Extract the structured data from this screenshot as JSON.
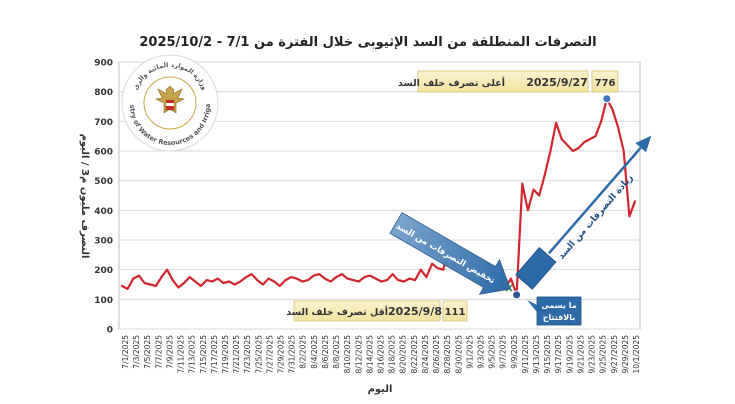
{
  "chart_data": {
    "type": "line",
    "title": "التصرفات المنطلقة من السد الإثيوبى خلال الفترة من 7/1 - 2025/10/2",
    "xlabel": "اليوم",
    "ylabel": "التصرف مليون م3 / اليوم",
    "ylim": [
      0,
      900
    ],
    "yticks": [
      0,
      100,
      200,
      300,
      400,
      500,
      600,
      700,
      800,
      900
    ],
    "grid": true,
    "series_color": "#d0262e",
    "x_tick_labels": [
      "7/1/2025",
      "7/3/2025",
      "7/5/2025",
      "7/7/2025",
      "7/9/2025",
      "7/11/2025",
      "7/13/2025",
      "7/15/2025",
      "7/17/2025",
      "7/19/2025",
      "7/21/2025",
      "7/23/2025",
      "7/25/2025",
      "7/27/2025",
      "7/29/2025",
      "7/31/2025",
      "8/2/2025",
      "8/4/2025",
      "8/6/2025",
      "8/8/2025",
      "8/10/2025",
      "8/12/2025",
      "8/14/2025",
      "8/16/2025",
      "8/18/2025",
      "8/20/2025",
      "8/22/2025",
      "8/24/2025",
      "8/26/2025",
      "8/28/2025",
      "8/30/2025",
      "9/1/2025",
      "9/3/2025",
      "9/5/2025",
      "9/7/2025",
      "9/9/2025",
      "9/11/2025",
      "9/13/2025",
      "9/15/2025",
      "9/17/2025",
      "9/19/2025",
      "9/21/2025",
      "9/23/2025",
      "9/25/2025",
      "9/27/2025",
      "9/29/2025",
      "10/1/2025"
    ],
    "series": [
      {
        "name": "",
        "values": [
          145,
          135,
          170,
          180,
          155,
          150,
          145,
          175,
          200,
          165,
          140,
          155,
          175,
          160,
          145,
          165,
          160,
          170,
          155,
          160,
          150,
          160,
          175,
          185,
          165,
          150,
          170,
          160,
          145,
          165,
          175,
          170,
          160,
          165,
          180,
          185,
          170,
          160,
          175,
          185,
          170,
          165,
          160,
          175,
          180,
          170,
          160,
          165,
          185,
          165,
          160,
          170,
          165,
          200,
          175,
          220,
          205,
          200,
          285,
          200,
          195,
          180,
          185,
          165,
          180,
          160,
          160,
          150,
          140,
          170,
          115,
          490,
          400,
          470,
          450,
          520,
          600,
          695,
          640,
          620,
          600,
          610,
          630,
          640,
          650,
          700,
          776,
          740,
          680,
          600,
          380,
          430
        ]
      }
    ],
    "annotations": {
      "max_value": "776",
      "max_label": "أعلى تصرف خلف السد",
      "max_date": "2025/9/27",
      "min_value": "111",
      "min_label": "أقل تصرف خلف السد",
      "min_date": "2025/9/8",
      "decrease_arrow": "تخفيض التصرفات من السد",
      "increase_arrow": "زيادة التصرفات من السد",
      "opening_note": "ما يسمى بالافتتاح"
    },
    "logo_text": {
      "top": "وزارة الموارد المائية والرى",
      "bottom": "Ministry of Water Resources and Irrigation"
    }
  }
}
